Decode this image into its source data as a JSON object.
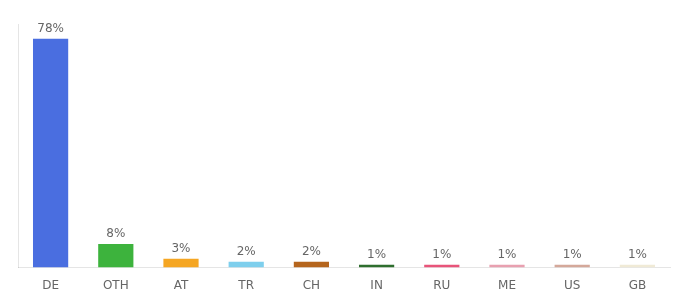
{
  "chart_data": {
    "type": "bar",
    "categories": [
      "DE",
      "OTH",
      "AT",
      "TR",
      "CH",
      "IN",
      "RU",
      "ME",
      "US",
      "GB"
    ],
    "values": [
      78,
      8,
      3,
      2,
      2,
      1,
      1,
      1,
      1,
      1
    ],
    "value_labels": [
      "78%",
      "8%",
      "3%",
      "2%",
      "2%",
      "1%",
      "1%",
      "1%",
      "1%",
      "1%"
    ],
    "colors": [
      "#4a6ee0",
      "#3db33d",
      "#f5a623",
      "#7ecfed",
      "#b5651d",
      "#2e6e2e",
      "#e8547a",
      "#e8a0b0",
      "#d4a89a",
      "#f0ead6"
    ],
    "ylim": [
      0,
      83
    ],
    "grid": false,
    "data_labels": true,
    "tick_labels": "x"
  }
}
